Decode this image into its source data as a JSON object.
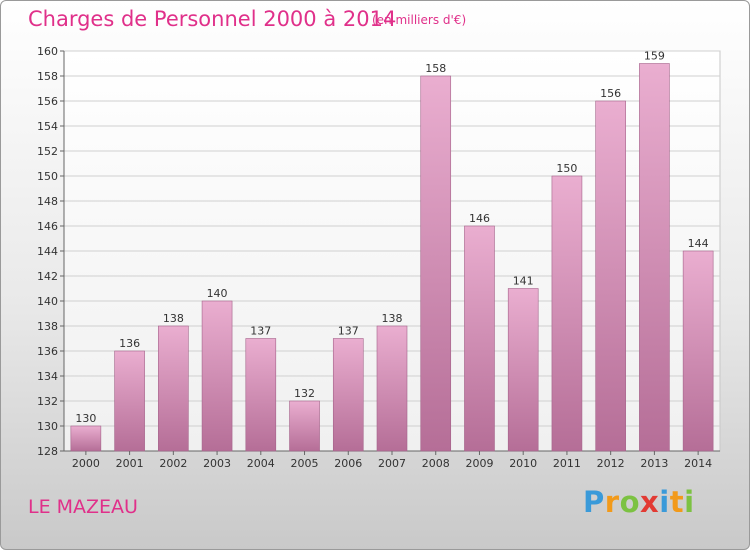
{
  "header": {
    "title": "Charges de Personnel 2000 à 2014",
    "subtitle": "(en milliers d'€)"
  },
  "footer": {
    "commune": "LE MAZEAU",
    "logo_letters": [
      {
        "char": "P",
        "color": "#3a9ad9"
      },
      {
        "char": "r",
        "color": "#f29a1a"
      },
      {
        "char": "o",
        "color": "#7cc242"
      },
      {
        "char": "x",
        "color": "#e23a33"
      },
      {
        "char": "i",
        "color": "#3a9ad9"
      },
      {
        "char": "t",
        "color": "#f29a1a"
      },
      {
        "char": "i",
        "color": "#7cc242"
      }
    ]
  },
  "colors": {
    "title": "#e0308a",
    "bar_light": "#e8a9cd",
    "bar_dark": "#b86a95",
    "grid": "#d0d0d0"
  },
  "chart_data": {
    "type": "bar",
    "categories": [
      "2000",
      "2001",
      "2002",
      "2003",
      "2004",
      "2005",
      "2006",
      "2007",
      "2008",
      "2009",
      "2010",
      "2011",
      "2012",
      "2013",
      "2014"
    ],
    "values": [
      130,
      136,
      138,
      140,
      137,
      132,
      137,
      138,
      158,
      146,
      141,
      150,
      156,
      159,
      144
    ],
    "ylim": [
      128,
      160
    ],
    "yticks": [
      128,
      130,
      132,
      134,
      136,
      138,
      140,
      142,
      144,
      146,
      148,
      150,
      152,
      154,
      156,
      158,
      160
    ],
    "grid": true,
    "title": "Charges de Personnel 2000 à 2014",
    "xlabel": "",
    "ylabel": ""
  }
}
